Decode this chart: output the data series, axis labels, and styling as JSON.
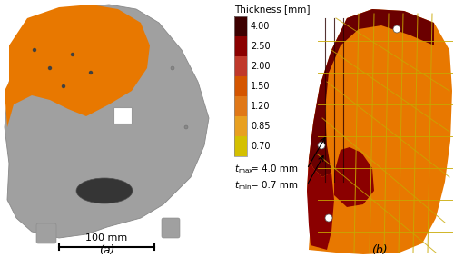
{
  "label_a": "(a)",
  "label_b": "(b)",
  "scalebar_text": "100 mm",
  "colorbar_title": "Thickness [mm]",
  "colorbar_labels": [
    "4.00",
    "2.50",
    "2.00",
    "1.50",
    "1.20",
    "0.85",
    "0.70"
  ],
  "colorbar_colors": [
    "#3d0000",
    "#8b0000",
    "#c0392b",
    "#d45500",
    "#e07818",
    "#e8a020",
    "#d4c000"
  ],
  "bg_color": "#ffffff",
  "gray": "#a0a0a0",
  "orange": "#e87800",
  "dark_red": "#5a0000",
  "med_red": "#8b1010",
  "rib_color": "#c8a800",
  "fig_width": 5.0,
  "fig_height": 2.84
}
